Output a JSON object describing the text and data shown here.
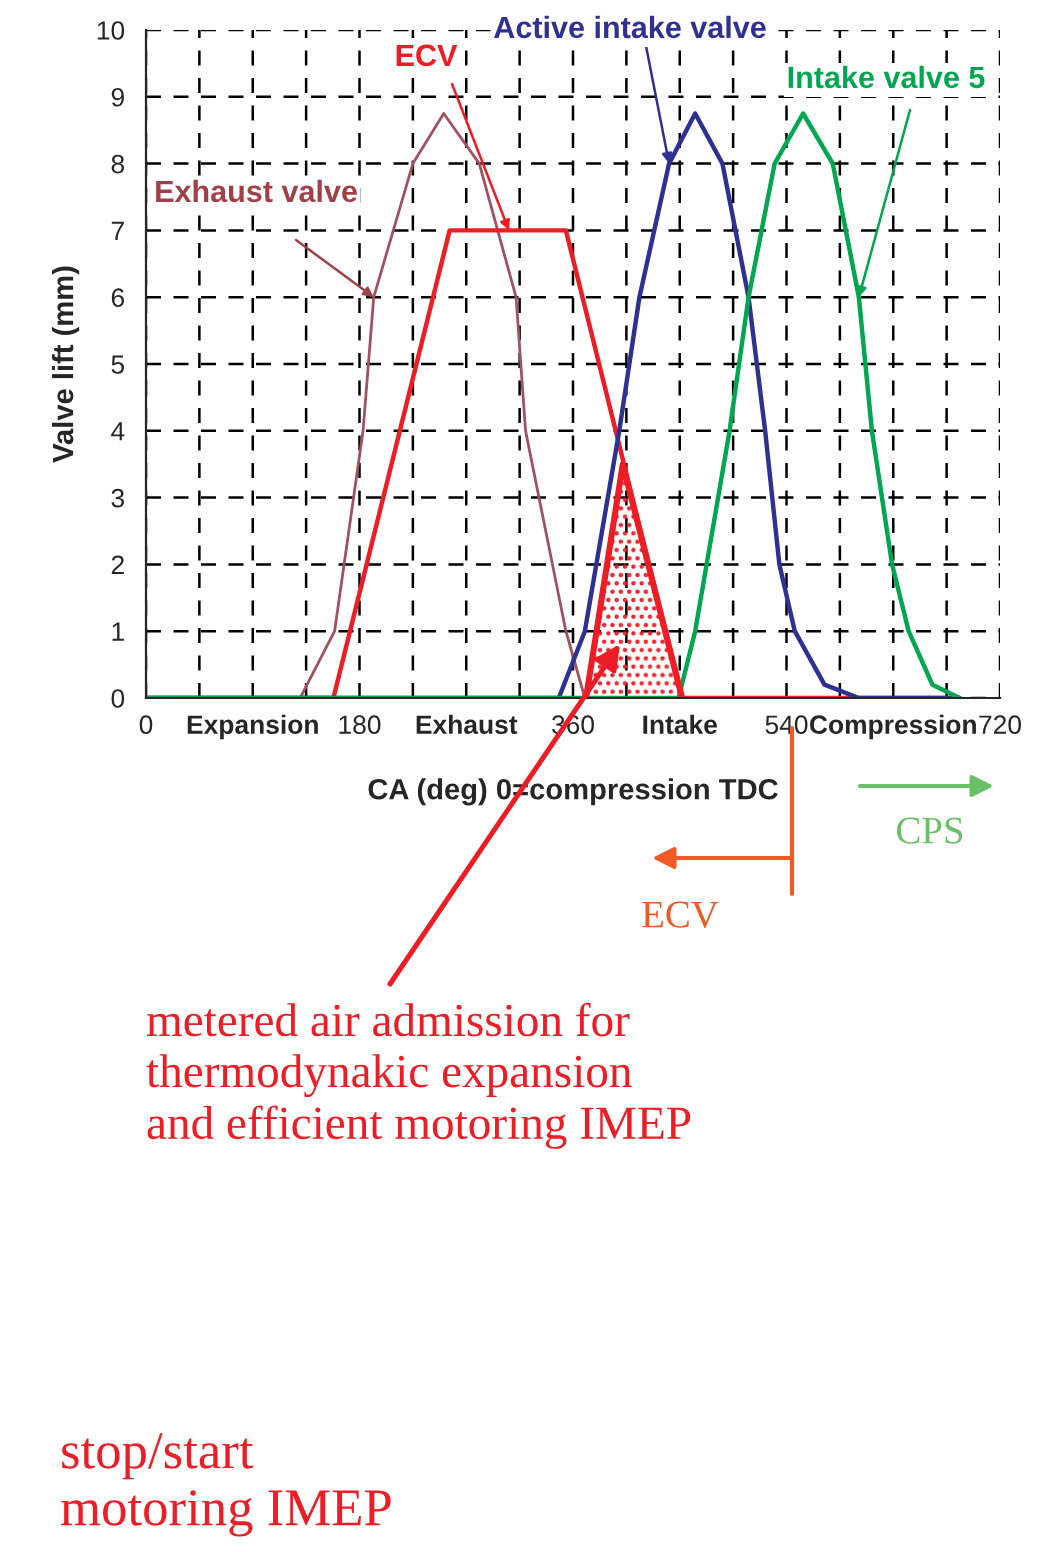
{
  "chart_data": {
    "type": "line",
    "xlabel": "CA (deg) 0=compression TDC",
    "ylabel": "Valve lift (mm)",
    "xlim": [
      0,
      720
    ],
    "ylim": [
      0,
      10
    ],
    "xticks": [
      0,
      {
        "value": 45,
        "label": null
      },
      {
        "value": 90,
        "label": "Expansion"
      },
      {
        "value": 135,
        "label": null
      },
      180,
      {
        "value": 225,
        "label": null
      },
      {
        "value": 270,
        "label": "Exhaust"
      },
      {
        "value": 315,
        "label": null
      },
      360,
      {
        "value": 405,
        "label": null
      },
      {
        "value": 450,
        "label": "Intake"
      },
      {
        "value": 495,
        "label": null
      },
      540,
      {
        "value": 585,
        "label": null
      },
      {
        "value": 630,
        "label": "Compression"
      },
      {
        "value": 675,
        "label": null
      },
      720
    ],
    "yticks": [
      0,
      1,
      2,
      3,
      4,
      5,
      6,
      7,
      8,
      9,
      10
    ],
    "grid": true,
    "line_style": "solid",
    "marker": "none",
    "series": [
      {
        "color": "#a0525e",
        "x": [
          0,
          130,
          159,
          183,
          192,
          225,
          251,
          281,
          312,
          320,
          354,
          370,
          686
        ],
        "values": [
          0,
          0,
          1,
          4,
          6,
          8,
          8.75,
          8,
          6,
          4,
          1,
          0,
          0
        ]
      },
      {
        "color": "#ee1c25",
        "x": [
          0,
          158,
          256,
          354,
          452,
          686
        ],
        "values": [
          0,
          0,
          7,
          7,
          0,
          0
        ]
      },
      {
        "color": "#2e3192",
        "x": [
          0,
          348,
          370,
          399,
          416,
          441,
          463,
          486,
          508,
          522,
          534,
          547,
          572,
          601,
          686
        ],
        "values": [
          0,
          0,
          1,
          4,
          6,
          8,
          8.75,
          8,
          6,
          4,
          2,
          1,
          0.2,
          0,
          0
        ]
      },
      {
        "color": "#00a650",
        "x": [
          0,
          449,
          463,
          492,
          508,
          530,
          554,
          579,
          601,
          612,
          629,
          643,
          663,
          686
        ],
        "values": [
          0,
          0,
          1,
          4,
          6,
          8,
          8.75,
          8,
          6,
          4,
          2,
          1,
          0.2,
          0
        ]
      },
      {
        "type": "area",
        "color": "#ee1c25",
        "x": [
          371,
          402,
          452
        ],
        "values": [
          0,
          3.5,
          0
        ]
      }
    ],
    "annotations": [
      {
        "text": "Exhaust valve",
        "x": 192,
        "y": 6
      },
      {
        "text": "ECV",
        "x": 306,
        "y": 7
      },
      {
        "text": "Active intake valve",
        "x": 441,
        "y": 8
      },
      {
        "text": "Intake valve 5",
        "x": 601,
        "y": 6
      },
      "metered air admission for\nthermodynakic expansion\nand efficient motoring IMEP",
      "ECV",
      "CPS",
      "stop/start\nmotoring IMEP"
    ]
  }
}
